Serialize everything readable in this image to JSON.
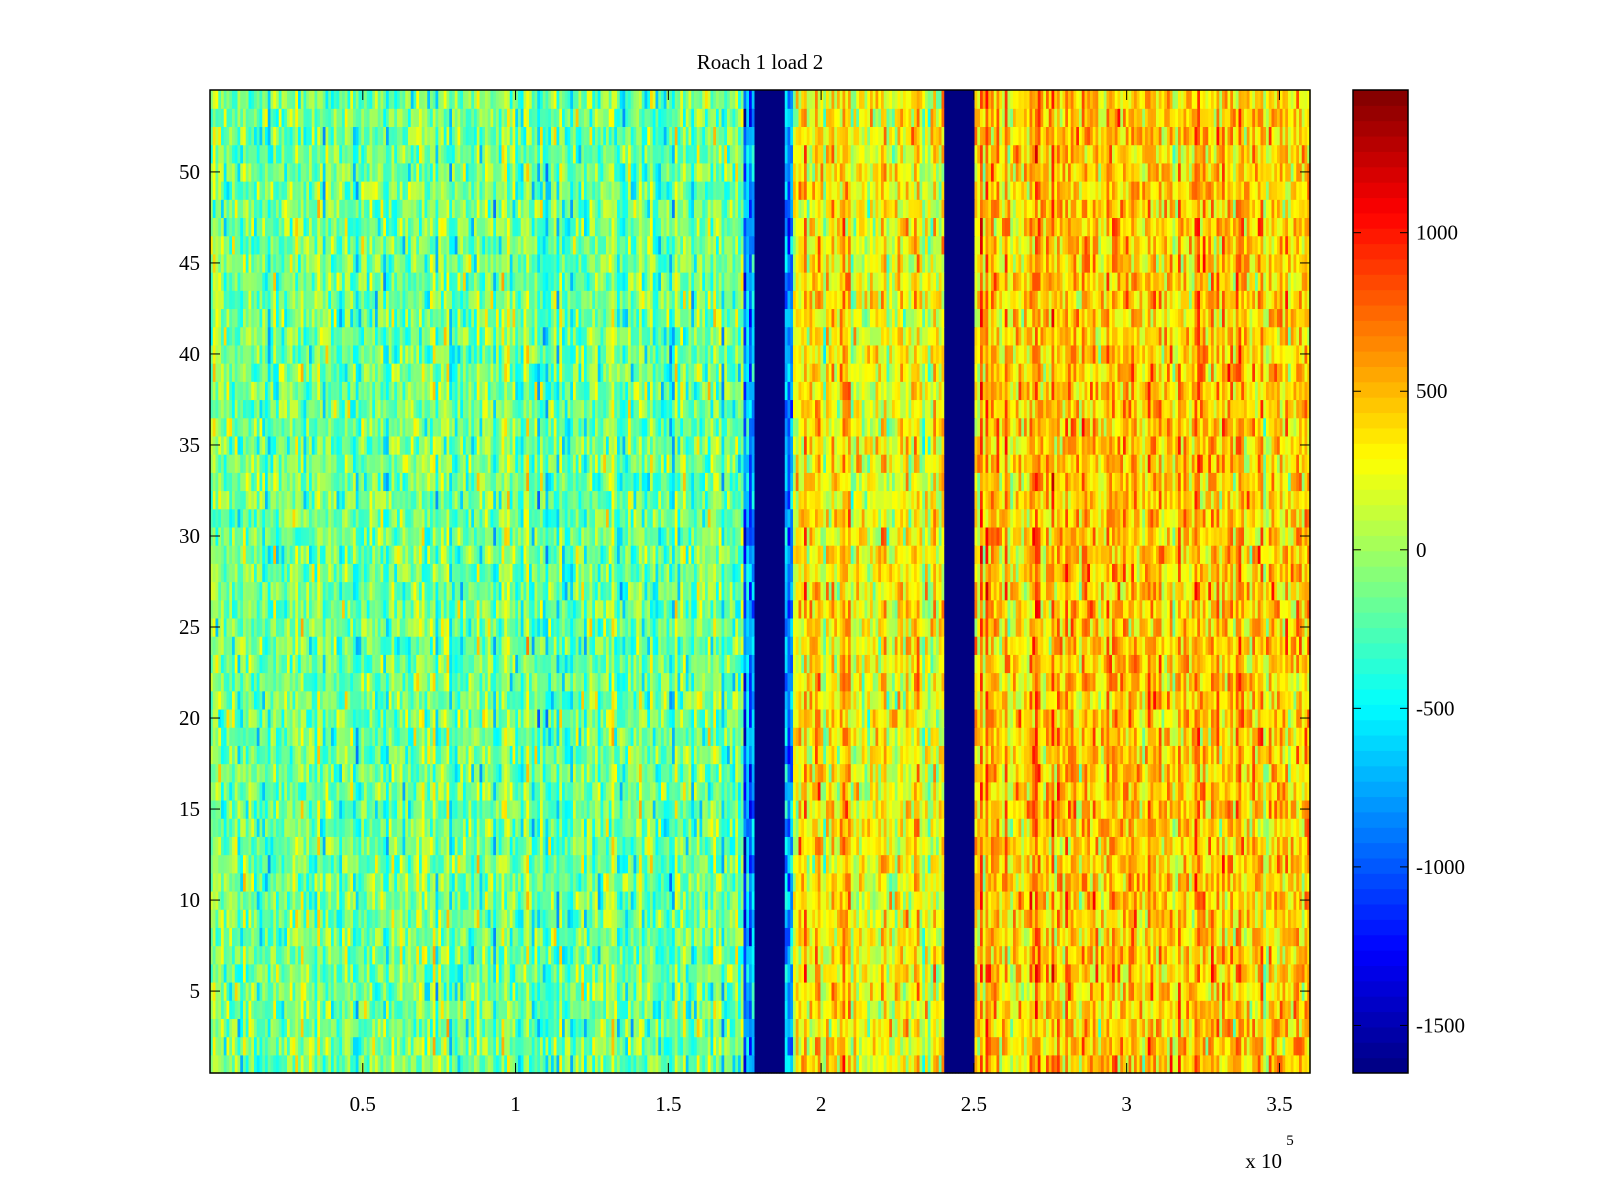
{
  "chart_data": {
    "type": "heatmap",
    "title": "Roach 1 load 2",
    "xlabel": "",
    "ylabel": "",
    "x_multiplier_label": "x 10",
    "x_multiplier_exponent": "5",
    "xlim": [
      0,
      360000
    ],
    "ylim": [
      0.5,
      54.5
    ],
    "x_ticks": [
      {
        "value": 50000,
        "label": "0.5"
      },
      {
        "value": 100000,
        "label": "1"
      },
      {
        "value": 150000,
        "label": "1.5"
      },
      {
        "value": 200000,
        "label": "2"
      },
      {
        "value": 250000,
        "label": "2.5"
      },
      {
        "value": 300000,
        "label": "3"
      },
      {
        "value": 350000,
        "label": "3.5"
      }
    ],
    "y_ticks": [
      {
        "value": 5,
        "label": "5"
      },
      {
        "value": 10,
        "label": "10"
      },
      {
        "value": 15,
        "label": "15"
      },
      {
        "value": 20,
        "label": "20"
      },
      {
        "value": 25,
        "label": "25"
      },
      {
        "value": 30,
        "label": "30"
      },
      {
        "value": 35,
        "label": "35"
      },
      {
        "value": 40,
        "label": "40"
      },
      {
        "value": 45,
        "label": "45"
      },
      {
        "value": 50,
        "label": "50"
      }
    ],
    "colorbar": {
      "colormap": "jet",
      "range": [
        -1650,
        1450
      ],
      "ticks": [
        {
          "value": 1000,
          "label": "1000"
        },
        {
          "value": 500,
          "label": "500"
        },
        {
          "value": 0,
          "label": "0"
        },
        {
          "value": -500,
          "label": "-500"
        },
        {
          "value": -1000,
          "label": "-1000"
        },
        {
          "value": -1500,
          "label": "-1500"
        }
      ]
    },
    "rows": 54,
    "column_bands": [
      {
        "x_start": 0,
        "x_end": 175000,
        "mean_value": -150
      },
      {
        "x_start": 175000,
        "x_end": 178000,
        "mean_value": -900
      },
      {
        "x_start": 178000,
        "x_end": 188000,
        "mean_value": -1650
      },
      {
        "x_start": 188000,
        "x_end": 191000,
        "mean_value": -800
      },
      {
        "x_start": 191000,
        "x_end": 240000,
        "mean_value": 300
      },
      {
        "x_start": 240000,
        "x_end": 250000,
        "mean_value": -1650
      },
      {
        "x_start": 250000,
        "x_end": 360000,
        "mean_value": 450
      }
    ],
    "grid": false,
    "legend": "colorbar-right"
  }
}
